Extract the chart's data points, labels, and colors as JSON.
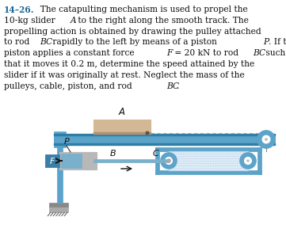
{
  "background_color": "#ffffff",
  "track_color": "#5ba3c9",
  "track_dark": "#2e7fa8",
  "slider_color": "#d4b896",
  "piston_color": "#7ab0cc",
  "frame_color": "#5ba3c9",
  "support_color": "#5ba3c9",
  "ground_color": "#888888",
  "cable_color": "#999999",
  "number_color": "#1a6496",
  "fig_width": 3.61,
  "fig_height": 2.98,
  "dpi": 100,
  "text_lines": [
    [
      "14–26.",
      "  The catapulting mechanism is used to propel the"
    ],
    [
      "10-kg slider ",
      "A",
      " to the right along the smooth track. The"
    ],
    [
      "propelling action is obtained by drawing the pulley attached"
    ],
    [
      "to rod ",
      "BC",
      " rapidly to the left by means of a piston ",
      "P",
      ". If the"
    ],
    [
      "piston applies a constant force ",
      "F",
      " = 20 kN to rod ",
      "BC",
      " such"
    ],
    [
      "that it moves it 0.2 m, determine the speed attained by the"
    ],
    [
      "slider if it was originally at rest. Neglect the mass of the"
    ],
    [
      "pulleys, cable, piston, and rod ",
      "BC",
      "."
    ]
  ]
}
